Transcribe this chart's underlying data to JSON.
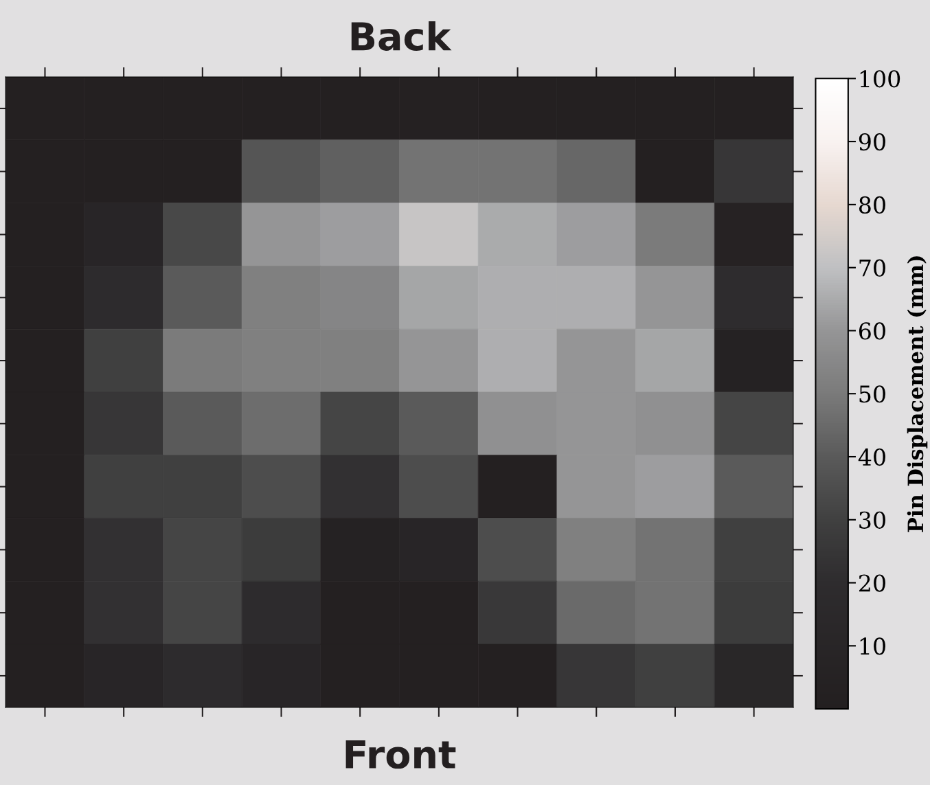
{
  "chart_data": {
    "type": "heatmap",
    "title": "Back",
    "xlabel": "Front",
    "clabel": "Pin Displacement (mm)",
    "categories": [
      null,
      null,
      null,
      null,
      null,
      null,
      null,
      null,
      null,
      null
    ],
    "y_categories": [
      null,
      null,
      null,
      null,
      null,
      null,
      null,
      null,
      null,
      null
    ],
    "cells": [
      [
        2,
        2,
        2,
        2,
        2,
        3,
        2,
        2,
        2,
        2
      ],
      [
        2,
        2,
        2,
        38,
        42,
        48,
        48,
        44,
        2,
        25
      ],
      [
        2,
        10,
        33,
        60,
        62,
        72,
        65,
        62,
        50,
        5
      ],
      [
        2,
        18,
        40,
        52,
        54,
        64,
        66,
        66,
        60,
        20
      ],
      [
        2,
        30,
        50,
        52,
        52,
        60,
        66,
        60,
        64,
        4
      ],
      [
        2,
        25,
        40,
        46,
        32,
        40,
        58,
        60,
        58,
        32
      ],
      [
        2,
        30,
        30,
        35,
        22,
        35,
        2,
        60,
        62,
        40
      ],
      [
        2,
        22,
        32,
        28,
        4,
        10,
        35,
        52,
        48,
        30
      ],
      [
        2,
        22,
        32,
        18,
        2,
        2,
        26,
        45,
        48,
        28
      ],
      [
        2,
        10,
        18,
        10,
        2,
        2,
        2,
        25,
        30,
        12
      ]
    ],
    "clim": [
      0,
      100
    ],
    "cticks": [
      10,
      20,
      30,
      40,
      50,
      60,
      70,
      80,
      90,
      100
    ],
    "grid": false
  }
}
